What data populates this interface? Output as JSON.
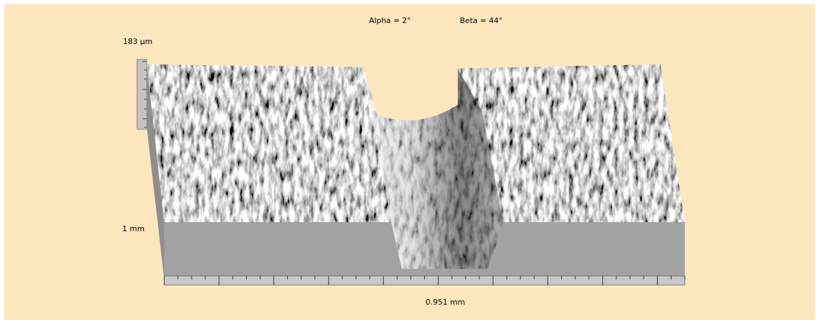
{
  "header": {
    "alpha": "Alpha = 2°",
    "beta": "Beta = 44°"
  },
  "axes": {
    "z_max": "183 µm",
    "y_length": "1 mm",
    "x_length": "0.951 mm"
  }
}
